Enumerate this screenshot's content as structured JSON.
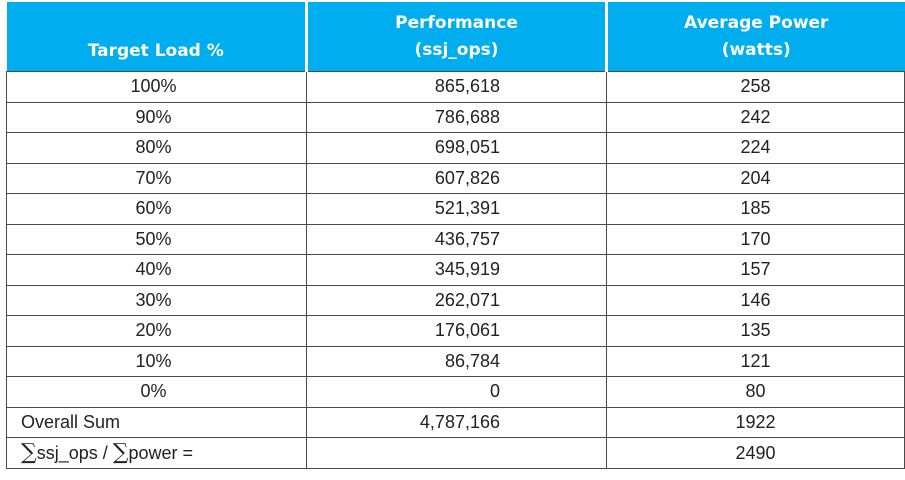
{
  "headers": {
    "target_load": "Target Load %",
    "performance_line1": "Performance",
    "performance_line2": "(ssj_ops)",
    "power_line1": "Average Power",
    "power_line2": "(watts)"
  },
  "rows": [
    {
      "load": "100%",
      "perf": "865,618",
      "power": "258"
    },
    {
      "load": "90%",
      "perf": "786,688",
      "power": "242"
    },
    {
      "load": "80%",
      "perf": "698,051",
      "power": "224"
    },
    {
      "load": "70%",
      "perf": "607,826",
      "power": "204"
    },
    {
      "load": "60%",
      "perf": "521,391",
      "power": "185"
    },
    {
      "load": "50%",
      "perf": "436,757",
      "power": "170"
    },
    {
      "load": "40%",
      "perf": "345,919",
      "power": "157"
    },
    {
      "load": "30%",
      "perf": "262,071",
      "power": "146"
    },
    {
      "load": "20%",
      "perf": "176,061",
      "power": "135"
    },
    {
      "load": "10%",
      "perf": "86,784",
      "power": "121"
    },
    {
      "load": "0%",
      "perf": "0",
      "power": "80"
    }
  ],
  "overall": {
    "label": "Overall Sum",
    "perf": "4,787,166",
    "power": "1922"
  },
  "ratio": {
    "sum_symbol": "∑",
    "ops_text": "ssj_ops / ",
    "power_text": "power =",
    "value": "2490"
  },
  "colors": {
    "header_bg": "#00aeef",
    "header_text": "#ffffff",
    "border": "#4a4a4a"
  }
}
